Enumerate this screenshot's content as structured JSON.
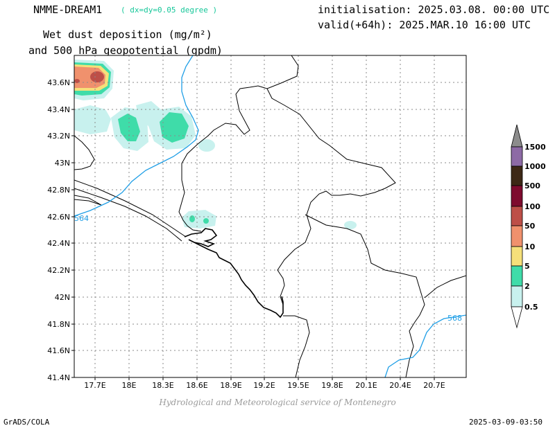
{
  "header": {
    "model": "NMME-DREAM1",
    "resolution": "( dx=dy=0.05 degree )",
    "initialisation": "initialisation: 2025.03.08. 00:00 UTC",
    "valid": "valid(+64h): 2025.MAR.10 16:00 UTC",
    "title_line1": "Wet dust deposition (mg/m²)",
    "title_line2": "and 500 hPa geopotential (gpdm)"
  },
  "map": {
    "lon_range": [
      17.5,
      21.0
    ],
    "lat_range": [
      41.4,
      43.8
    ],
    "x_ticks": [
      "17.7E",
      "18E",
      "18.3E",
      "18.6E",
      "18.9E",
      "19.2E",
      "19.5E",
      "19.8E",
      "20.1E",
      "20.4E",
      "20.7E"
    ],
    "y_ticks": [
      "43.6N",
      "43.4N",
      "43.2N",
      "43N",
      "42.8N",
      "42.6N",
      "42.4N",
      "42.2N",
      "42N",
      "41.8N",
      "41.6N",
      "41.4N"
    ],
    "grid": true,
    "contour_color": "#1e9ee6",
    "contour_labels": [
      "564",
      "568"
    ]
  },
  "colorbar": {
    "levels": [
      "0.5",
      "2",
      "5",
      "10",
      "50",
      "100",
      "500",
      "1000",
      "1500"
    ],
    "colors": [
      "#c8f1ee",
      "#3fdca9",
      "#f5e07a",
      "#f0916d",
      "#bd4f48",
      "#7e0b2e",
      "#3d2816",
      "#8d6aa5",
      "#8c8c8c"
    ]
  },
  "footer": {
    "credit": "Hydrological and Meteorological service of Montenegro",
    "software": "GrADS/COLA",
    "timestamp": "2025-03-09-03:50"
  }
}
